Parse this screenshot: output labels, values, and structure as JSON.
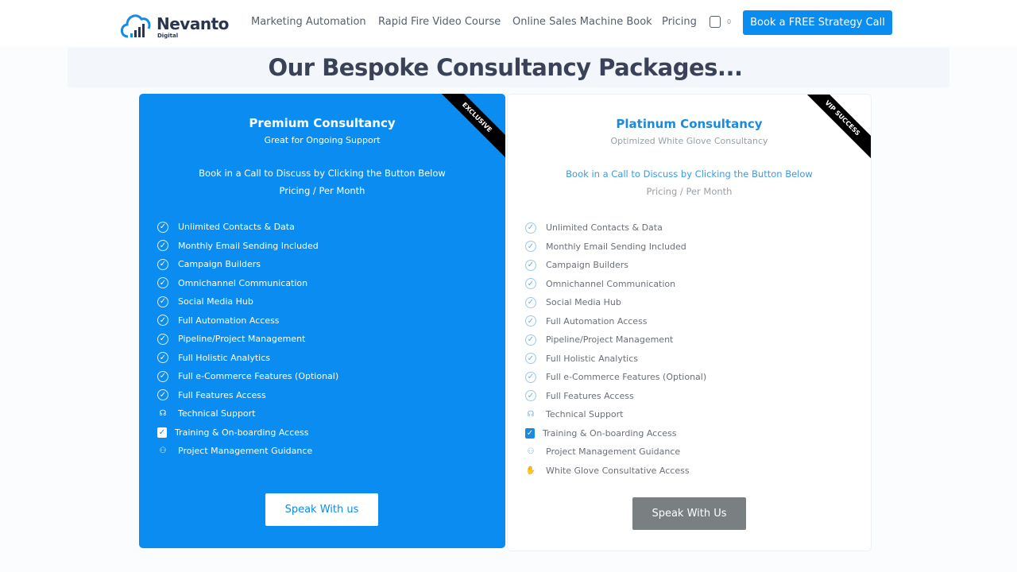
{
  "header": {
    "logo_text": "Nevanto",
    "logo_sub": "Digital",
    "nav": [
      "Marketing Automation",
      "Rapid Fire Video Course",
      "Online Sales Machine Book",
      "Pricing"
    ],
    "cart_count": "0",
    "cta": "Book a FREE Strategy Call"
  },
  "page_title": "Our Bespoke Consultancy Packages...",
  "colors": {
    "accent": "#0a8cf0",
    "title": "#3a4259",
    "gray_button": "#7a8081"
  },
  "cards": [
    {
      "ribbon": "EXCLUSIVE",
      "title": "Premium Consultancy",
      "subtitle": "Great for Ongoing Support",
      "book": "Book in a Call to Discuss by Clicking the Button Below",
      "pricing": "Pricing / Per Month",
      "button": "Speak With us",
      "features": [
        {
          "icon": "check-circle-icon",
          "label": "Unlimited Contacts & Data"
        },
        {
          "icon": "check-circle-icon",
          "label": "Monthly Email Sending Included"
        },
        {
          "icon": "check-circle-icon",
          "label": "Campaign Builders"
        },
        {
          "icon": "check-circle-icon",
          "label": "Omnichannel Communication"
        },
        {
          "icon": "check-circle-icon",
          "label": "Social Media Hub"
        },
        {
          "icon": "check-circle-icon",
          "label": "Full Automation Access"
        },
        {
          "icon": "check-circle-icon",
          "label": "Pipeline/Project Management"
        },
        {
          "icon": "check-circle-icon",
          "label": "Full Holistic Analytics"
        },
        {
          "icon": "check-circle-icon",
          "label": "Full e-Commerce Features (Optional)"
        },
        {
          "icon": "check-circle-icon",
          "label": "Full Features Access"
        },
        {
          "icon": "headset-icon",
          "label": "Technical Support"
        },
        {
          "icon": "clipboard-check-icon",
          "label": "Training & On-boarding Access"
        },
        {
          "icon": "people-icon",
          "label": "Project Management Guidance"
        }
      ]
    },
    {
      "ribbon": "VIP SUCCESS",
      "title": "Platinum Consultancy",
      "subtitle": "Optimized White Glove Consultancy",
      "book": "Book in a Call to Discuss by Clicking the Button Below",
      "pricing": "Pricing / Per Month",
      "button": "Speak With Us",
      "features": [
        {
          "icon": "check-circle-icon",
          "label": "Unlimited Contacts & Data"
        },
        {
          "icon": "check-circle-icon",
          "label": "Monthly Email Sending Included"
        },
        {
          "icon": "check-circle-icon",
          "label": "Campaign Builders"
        },
        {
          "icon": "check-circle-icon",
          "label": "Omnichannel Communication"
        },
        {
          "icon": "check-circle-icon",
          "label": "Social Media Hub"
        },
        {
          "icon": "check-circle-icon",
          "label": "Full Automation Access"
        },
        {
          "icon": "check-circle-icon",
          "label": "Pipeline/Project Management"
        },
        {
          "icon": "check-circle-icon",
          "label": "Full Holistic Analytics"
        },
        {
          "icon": "check-circle-icon",
          "label": "Full e-Commerce Features (Optional)"
        },
        {
          "icon": "check-circle-icon",
          "label": "Full Features Access"
        },
        {
          "icon": "headset-icon",
          "label": "Technical Support"
        },
        {
          "icon": "clipboard-check-icon",
          "label": "Training & On-boarding Access"
        },
        {
          "icon": "people-icon",
          "label": "Project Management Guidance"
        },
        {
          "icon": "handshake-icon",
          "label": "White Glove Consultative Access"
        }
      ]
    }
  ]
}
